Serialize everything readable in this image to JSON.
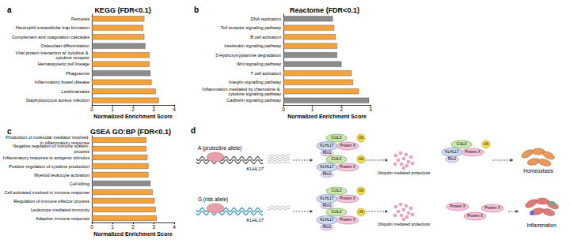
{
  "chart_data": [
    {
      "type": "bar",
      "title": "KEGG (FDR<0.1)",
      "annotations": [
        "a"
      ],
      "orientation": "horizontal",
      "x_label": "Normalized Enrichment Score",
      "categories": [
        "Pertussis",
        "Neutrophil extracellular trap formation",
        "Complement and coagulation cascades",
        "Osteoclast differentiation",
        "Viral protein interaction w/ cytokine & cytokine receptor",
        "Hematopoietic cell lineage",
        "Phagosome",
        "Inflammatory bowel disease",
        "Leishmaniasis",
        "Staphylococcus aureus infection"
      ],
      "values": [
        2.55,
        2.5,
        2.55,
        2.6,
        2.8,
        2.8,
        2.85,
        2.9,
        3.1,
        3.25
      ],
      "colors": [
        "#f5a23a",
        "#f5a23a",
        "#f5a23a",
        "#8c8c8c",
        "#f5a23a",
        "#f5a23a",
        "#8c8c8c",
        "#f5a23a",
        "#f5a23a",
        "#f5a23a"
      ],
      "xlim": [
        0,
        4
      ],
      "xticks": [
        0,
        1,
        2,
        3,
        4
      ],
      "grid": false
    },
    {
      "type": "bar",
      "title": "Reactome (FDR<0.1)",
      "annotations": [
        "b"
      ],
      "orientation": "horizontal",
      "x_label": "Normalized Enrichment Score",
      "categories": [
        "DNA replication",
        "Toll receptor signaling pathway",
        "B cell activation",
        "Interleukin signaling pathway",
        "5-Hydroxytryptamine degradation",
        "Wnt signaling pathway",
        "T cell activation",
        "Integrin signalling pathway",
        "Inflammation mediated by chemokine & cytokine signaling pathway",
        "Cadherin signaling pathway"
      ],
      "values": [
        1.7,
        1.75,
        1.8,
        1.85,
        1.85,
        2.0,
        2.35,
        2.4,
        2.6,
        2.95
      ],
      "colors": [
        "#8c8c8c",
        "#f5a23a",
        "#f5a23a",
        "#f5a23a",
        "#8c8c8c",
        "#8c8c8c",
        "#f5a23a",
        "#f5a23a",
        "#f5a23a",
        "#8c8c8c"
      ],
      "xlim": [
        0,
        3
      ],
      "xticks": [
        0,
        1,
        2,
        3
      ],
      "grid": false
    },
    {
      "type": "bar",
      "title": "GSEA GO:BP (FDR<0.1)",
      "annotations": [
        "c"
      ],
      "orientation": "horizontal",
      "x_label": "Normalized Enrichment Score",
      "categories": [
        "Production of molecular mediator involved in inflammatory response",
        "Negative regulation of immune system process",
        "Inflammatory response to antigenic stimulus",
        "Positive regulation of cytokine production",
        "Myeloid leukocyte activation",
        "Cell killing",
        "Cell activated involved in immune response",
        "Regulation of immune effector process",
        "Leukocyte mediated immunity",
        "Adaptive immune response"
      ],
      "values": [
        2.65,
        2.65,
        2.7,
        2.75,
        2.75,
        2.85,
        2.95,
        3.05,
        3.1,
        3.15
      ],
      "colors": [
        "#f5a23a",
        "#f5a23a",
        "#f5a23a",
        "#f5a23a",
        "#f5a23a",
        "#8c8c8c",
        "#f5a23a",
        "#f5a23a",
        "#f5a23a",
        "#f5a23a"
      ],
      "xlim": [
        0,
        4
      ],
      "xticks": [
        0,
        1,
        2,
        3,
        4
      ],
      "grid": false
    }
  ],
  "diagram": {
    "label": "d",
    "alleles": [
      {
        "label": "A (protective allele)",
        "gene": "KLHL17",
        "outcome": "Homeostasis"
      },
      {
        "label": "G (risk allele)",
        "gene": "KLHL17",
        "outcome": "Inflammation"
      }
    ],
    "complex": {
      "cul": "CUL3",
      "adaptor": "KLHL17",
      "substrate": "Protein X",
      "rbx": "Rbx1",
      "ub": "Ub"
    },
    "proteolysis": "Ubiquitin mediated proteolysis"
  }
}
